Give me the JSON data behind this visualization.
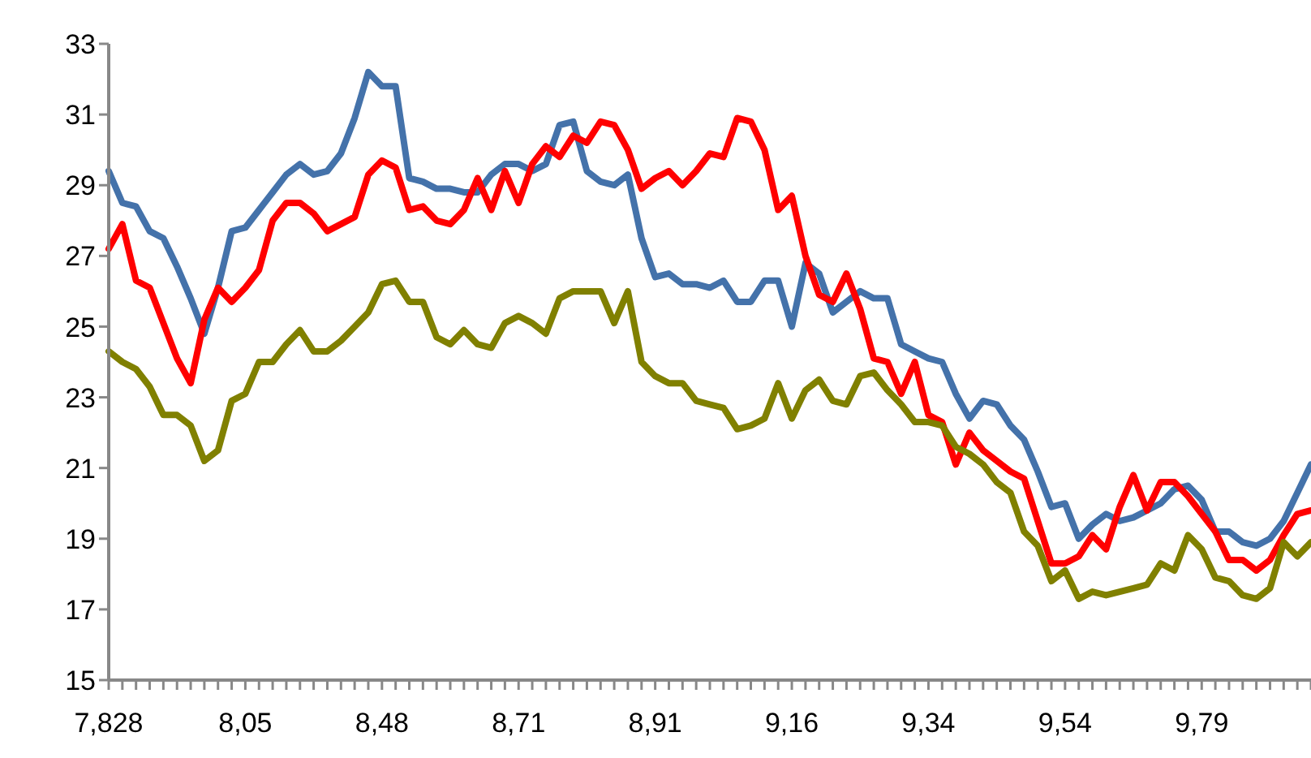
{
  "chart_data": {
    "type": "line",
    "categories": [
      "7,828",
      null,
      null,
      null,
      null,
      null,
      null,
      null,
      null,
      null,
      "8,05",
      null,
      null,
      null,
      null,
      null,
      null,
      null,
      null,
      null,
      "8,48",
      null,
      null,
      null,
      null,
      null,
      null,
      null,
      null,
      null,
      "8,71",
      null,
      null,
      null,
      null,
      null,
      null,
      null,
      null,
      null,
      "8,91",
      null,
      null,
      null,
      null,
      null,
      null,
      null,
      null,
      null,
      "9,16",
      null,
      null,
      null,
      null,
      null,
      null,
      null,
      null,
      null,
      "9,34",
      null,
      null,
      null,
      null,
      null,
      null,
      null,
      null,
      null,
      "9,54",
      null,
      null,
      null,
      null,
      null,
      null,
      null,
      null,
      null,
      "9,79",
      null,
      null,
      null,
      null,
      null,
      null,
      null,
      null
    ],
    "series": [
      {
        "color": "#4472aa",
        "values": [
          29.4,
          28.5,
          28.4,
          27.7,
          27.5,
          26.7,
          25.8,
          24.8,
          26.1,
          27.7,
          27.8,
          28.3,
          28.8,
          29.3,
          29.6,
          29.3,
          29.4,
          29.9,
          30.9,
          32.2,
          31.8,
          31.8,
          29.2,
          29.1,
          28.9,
          28.9,
          28.8,
          28.8,
          29.3,
          29.6,
          29.6,
          29.4,
          29.6,
          30.7,
          30.8,
          29.4,
          29.1,
          29.0,
          29.3,
          27.5,
          26.4,
          26.5,
          26.2,
          26.2,
          26.1,
          26.3,
          25.7,
          25.7,
          26.3,
          26.3,
          25.0,
          26.8,
          26.5,
          25.4,
          25.7,
          26.0,
          25.8,
          25.8,
          24.5,
          24.3,
          24.1,
          24.0,
          23.1,
          22.4,
          22.9,
          22.8,
          22.2,
          21.8,
          20.9,
          19.9,
          20.0,
          19.0,
          19.4,
          19.7,
          19.5,
          19.6,
          19.8,
          20.0,
          20.4,
          20.5,
          20.1,
          19.2,
          19.2,
          18.9,
          18.8,
          19.0,
          19.5,
          20.3,
          21.1
        ]
      },
      {
        "color": "#ff0000",
        "values": [
          27.2,
          27.9,
          26.3,
          26.1,
          25.1,
          24.1,
          23.4,
          25.2,
          26.1,
          25.7,
          26.1,
          26.6,
          28.0,
          28.5,
          28.5,
          28.2,
          27.7,
          27.9,
          28.1,
          29.3,
          29.7,
          29.5,
          28.3,
          28.4,
          28.0,
          27.9,
          28.3,
          29.2,
          28.3,
          29.4,
          28.5,
          29.6,
          30.1,
          29.8,
          30.4,
          30.2,
          30.8,
          30.7,
          30.0,
          28.9,
          29.2,
          29.4,
          29.0,
          29.4,
          29.9,
          29.8,
          30.9,
          30.8,
          30.0,
          28.3,
          28.7,
          27.0,
          25.9,
          25.7,
          26.5,
          25.5,
          24.1,
          24.0,
          23.1,
          24.0,
          22.5,
          22.3,
          21.1,
          22.0,
          21.5,
          21.2,
          20.9,
          20.7,
          19.5,
          18.3,
          18.3,
          18.5,
          19.1,
          18.7,
          19.9,
          20.8,
          19.8,
          20.6,
          20.6,
          20.2,
          19.7,
          19.2,
          18.4,
          18.4,
          18.1,
          18.4,
          19.1,
          19.7,
          19.8
        ]
      },
      {
        "color": "#808000",
        "values": [
          24.3,
          24.0,
          23.8,
          23.3,
          22.5,
          22.5,
          22.2,
          21.2,
          21.5,
          22.9,
          23.1,
          24.0,
          24.0,
          24.5,
          24.9,
          24.3,
          24.3,
          24.6,
          25.0,
          25.4,
          26.2,
          26.3,
          25.7,
          25.7,
          24.7,
          24.5,
          24.9,
          24.5,
          24.4,
          25.1,
          25.3,
          25.1,
          24.8,
          25.8,
          26.0,
          26.0,
          26.0,
          25.1,
          26.0,
          24.0,
          23.6,
          23.4,
          23.4,
          22.9,
          22.8,
          22.7,
          22.1,
          22.2,
          22.4,
          23.4,
          22.4,
          23.2,
          23.5,
          22.9,
          22.8,
          23.6,
          23.7,
          23.2,
          22.8,
          22.3,
          22.3,
          22.2,
          21.6,
          21.4,
          21.1,
          20.6,
          20.3,
          19.2,
          18.8,
          17.8,
          18.1,
          17.3,
          17.5,
          17.4,
          17.5,
          17.6,
          17.7,
          18.3,
          18.1,
          19.1,
          18.7,
          17.9,
          17.8,
          17.4,
          17.3,
          17.6,
          18.9,
          18.5,
          18.9
        ]
      }
    ],
    "ylim": [
      15,
      33
    ],
    "yticks": [
      15,
      17,
      19,
      21,
      23,
      25,
      27,
      29,
      31,
      33
    ],
    "grid": false,
    "legend": false,
    "marker": "none",
    "line_style": "solid"
  }
}
